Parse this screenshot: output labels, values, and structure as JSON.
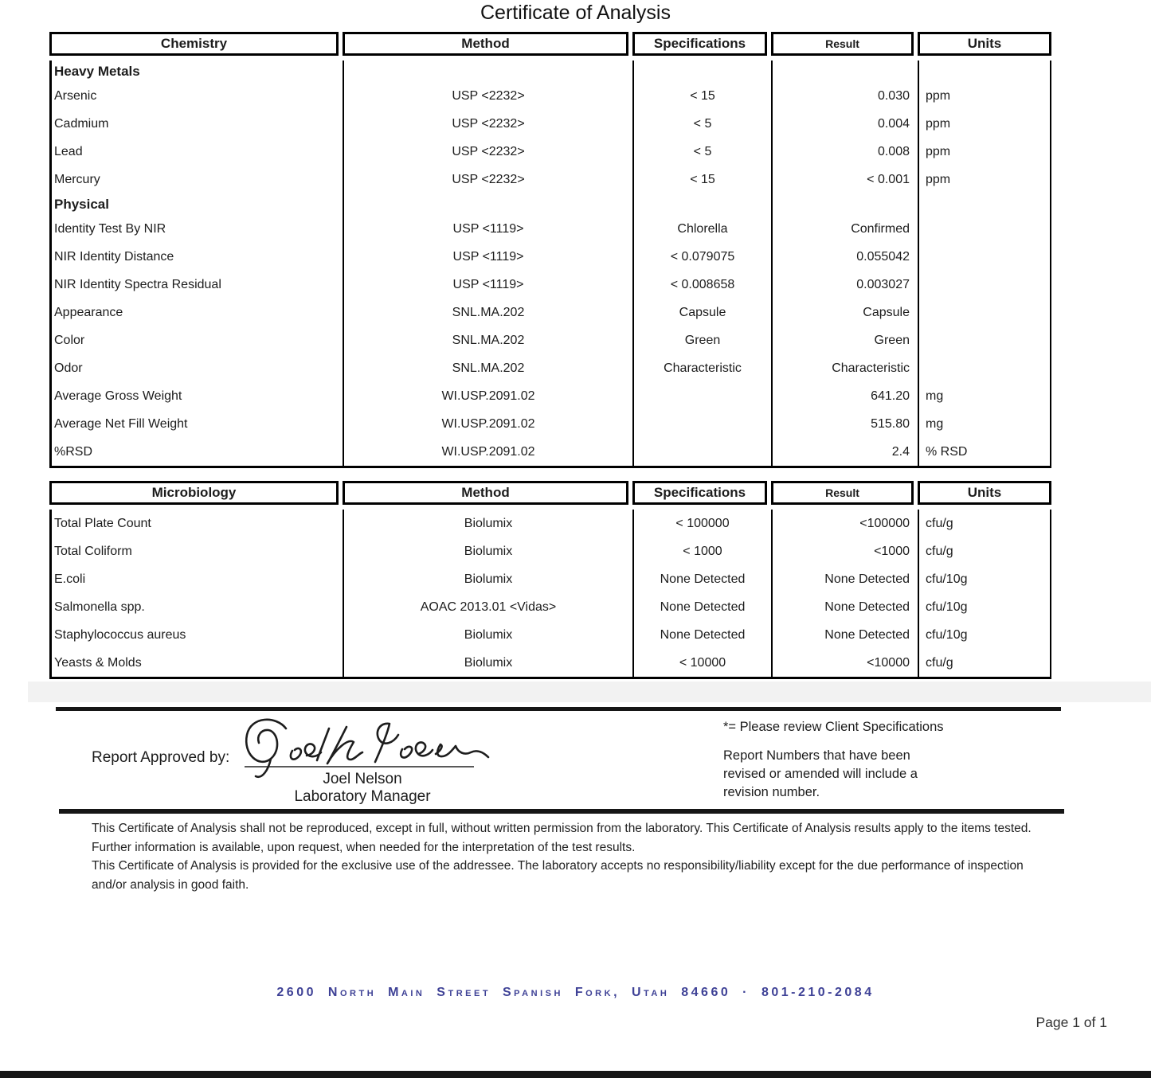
{
  "title": "Certificate of Analysis",
  "tables": [
    {
      "name": "chemistry",
      "headers": [
        "Chemistry",
        "Method",
        "Specifications",
        "Result",
        "Units"
      ],
      "rows": [
        {
          "section": "Heavy Metals"
        },
        {
          "analyte": "Arsenic",
          "method": "USP <2232>",
          "specification": "< 15",
          "result": "0.030",
          "units": "ppm"
        },
        {
          "analyte": "Cadmium",
          "method": "USP <2232>",
          "specification": "< 5",
          "result": "0.004",
          "units": "ppm"
        },
        {
          "analyte": "Lead",
          "method": "USP <2232>",
          "specification": "< 5",
          "result": "0.008",
          "units": "ppm"
        },
        {
          "analyte": "Mercury",
          "method": "USP <2232>",
          "specification": "< 15",
          "result": "< 0.001",
          "units": "ppm"
        },
        {
          "section": "Physical"
        },
        {
          "analyte": "Identity Test By NIR",
          "method": "USP <1119>",
          "specification": "Chlorella",
          "result": "Confirmed",
          "units": ""
        },
        {
          "analyte": "NIR Identity Distance",
          "method": "USP <1119>",
          "specification": "< 0.079075",
          "result": "0.055042",
          "units": ""
        },
        {
          "analyte": "NIR Identity Spectra Residual",
          "method": "USP <1119>",
          "specification": "< 0.008658",
          "result": "0.003027",
          "units": ""
        },
        {
          "analyte": "Appearance",
          "method": "SNL.MA.202",
          "specification": "Capsule",
          "result": "Capsule",
          "units": ""
        },
        {
          "analyte": "Color",
          "method": "SNL.MA.202",
          "specification": "Green",
          "result": "Green",
          "units": ""
        },
        {
          "analyte": "Odor",
          "method": "SNL.MA.202",
          "specification": "Characteristic",
          "result": "Characteristic",
          "units": ""
        },
        {
          "analyte": "Average Gross Weight",
          "method": "WI.USP.2091.02",
          "specification": "",
          "result": "641.20",
          "units": "mg"
        },
        {
          "analyte": "Average Net Fill Weight",
          "method": "WI.USP.2091.02",
          "specification": "",
          "result": "515.80",
          "units": "mg"
        },
        {
          "analyte": "%RSD",
          "method": "WI.USP.2091.02",
          "specification": "",
          "result": "2.4",
          "units": "% RSD"
        }
      ]
    },
    {
      "name": "microbiology",
      "headers": [
        "Microbiology",
        "Method",
        "Specifications",
        "Result",
        "Units"
      ],
      "rows": [
        {
          "analyte": "Total Plate Count",
          "method": "Biolumix",
          "specification": "< 100000",
          "result": "<100000",
          "units": "cfu/g"
        },
        {
          "analyte": "Total Coliform",
          "method": "Biolumix",
          "specification": "< 1000",
          "result": "<1000",
          "units": "cfu/g"
        },
        {
          "analyte": "E.coli",
          "method": "Biolumix",
          "specification": "None Detected",
          "result": "None Detected",
          "units": "cfu/10g"
        },
        {
          "analyte": "Salmonella spp.",
          "method": "AOAC 2013.01 <Vidas>",
          "specification": "None Detected",
          "result": "None Detected",
          "units": "cfu/10g"
        },
        {
          "analyte": "Staphylococcus aureus",
          "method": "Biolumix",
          "specification": "None Detected",
          "result": "None Detected",
          "units": "cfu/10g"
        },
        {
          "analyte": "Yeasts & Molds",
          "method": "Biolumix",
          "specification": "< 10000",
          "result": "<10000",
          "units": "cfu/g"
        }
      ]
    }
  ],
  "approval": {
    "label": "Report Approved by:",
    "signature_script": "Joel L Nelson",
    "name": "Joel Nelson",
    "role": "Laboratory Manager"
  },
  "notes": {
    "asterisk": "*= Please review Client Specifications",
    "revision": "Report Numbers that have been revised or amended will include a revision number."
  },
  "disclaimer": {
    "p1": "This Certificate of Analysis shall not be reproduced, except in full, without written permission from the laboratory. This Certificate of Analysis results apply to the items tested. Further information is available, upon request, when needed for the interpretation of the test results.",
    "p2": "This Certificate of Analysis is provided for the exclusive use of the addressee. The laboratory accepts no responsibility/liability except for the due performance of inspection and/or analysis in good faith."
  },
  "footer": {
    "address": "2600 North Main Street  Spanish Fork, Utah  84660 · 801-210-2084",
    "address_color": "#3e4196",
    "page": "Page 1 of 1"
  }
}
